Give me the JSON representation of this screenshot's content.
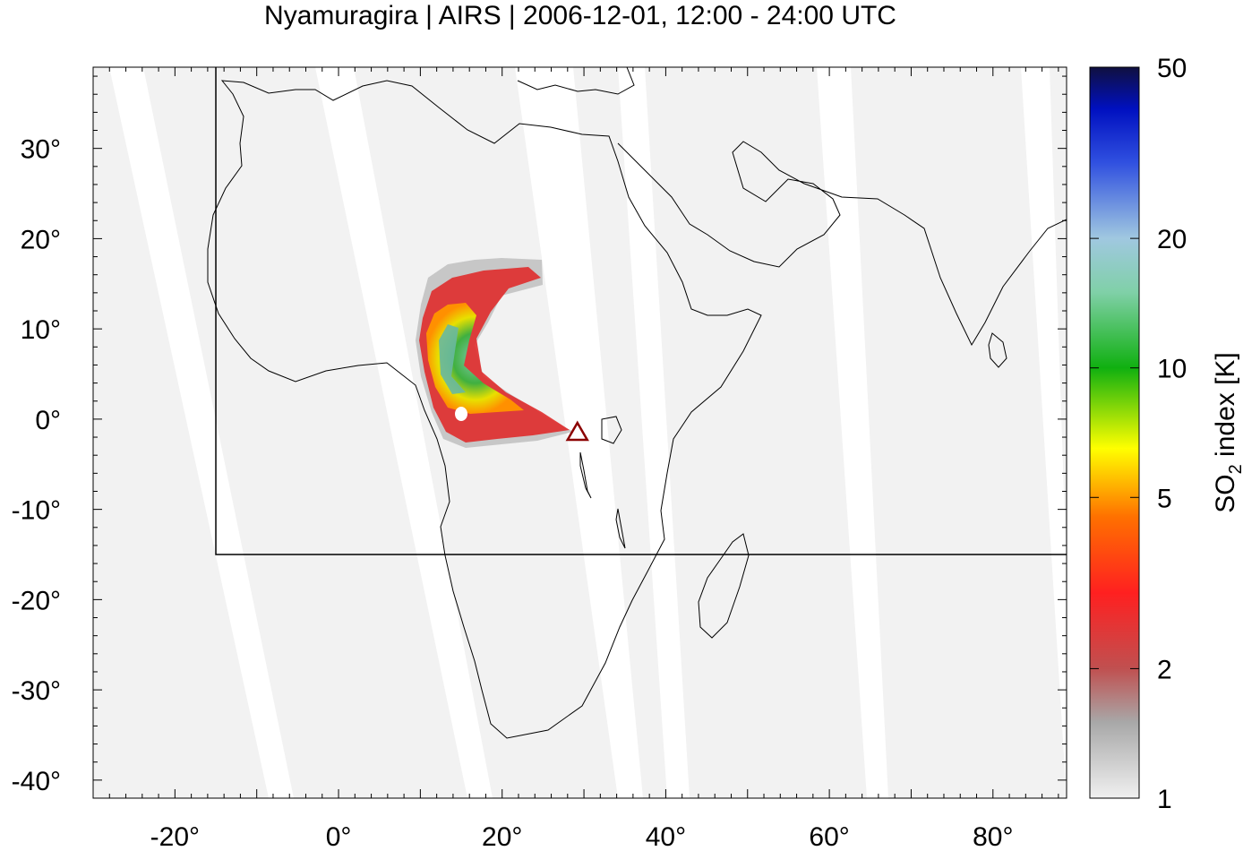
{
  "title": "Nyamuragira | AIRS | 2006-12-01, 12:00 - 24:00 UTC",
  "map": {
    "lon_range": [
      -30,
      89
    ],
    "lat_range": [
      -42,
      39
    ],
    "x_ticks": [
      {
        "value": -20,
        "label": "-20°"
      },
      {
        "value": 0,
        "label": "0°"
      },
      {
        "value": 20,
        "label": "20°"
      },
      {
        "value": 40,
        "label": "40°"
      },
      {
        "value": 60,
        "label": "60°"
      },
      {
        "value": 80,
        "label": "80°"
      }
    ],
    "y_ticks": [
      {
        "value": 30,
        "label": "30°"
      },
      {
        "value": 20,
        "label": "20°"
      },
      {
        "value": 10,
        "label": "10°"
      },
      {
        "value": 0,
        "label": "0°"
      },
      {
        "value": -10,
        "label": "-10°"
      },
      {
        "value": -20,
        "label": "-20°"
      },
      {
        "value": -30,
        "label": "-30°"
      },
      {
        "value": -40,
        "label": "-40°"
      }
    ],
    "region_box": {
      "lon_min": -15,
      "lon_max": 89,
      "lat_min": -15,
      "lat_max": 39
    },
    "volcano": {
      "name": "Nyamuragira",
      "lon": 29.2,
      "lat": -1.4,
      "color": "#8b0000"
    },
    "background_color": "#f2f2f2"
  },
  "colorbar": {
    "label_main": "SO",
    "label_sub": "2",
    "label_rest": " index [K]",
    "scale": "log",
    "range": [
      1,
      50
    ],
    "ticks": [
      {
        "value": 1,
        "label": "1"
      },
      {
        "value": 2,
        "label": "2"
      },
      {
        "value": 5,
        "label": "5"
      },
      {
        "value": 10,
        "label": "10"
      },
      {
        "value": 20,
        "label": "20"
      },
      {
        "value": 50,
        "label": "50"
      }
    ],
    "stops": [
      {
        "value": 1,
        "color": "#f0f0f0"
      },
      {
        "value": 1.5,
        "color": "#a8a8a8"
      },
      {
        "value": 2,
        "color": "#c05050"
      },
      {
        "value": 3,
        "color": "#ff2020"
      },
      {
        "value": 4.5,
        "color": "#ff7000"
      },
      {
        "value": 6.5,
        "color": "#ffff00"
      },
      {
        "value": 10,
        "color": "#10b010"
      },
      {
        "value": 15,
        "color": "#80d0a8"
      },
      {
        "value": 20,
        "color": "#a0c8e0"
      },
      {
        "value": 30,
        "color": "#3050e0"
      },
      {
        "value": 40,
        "color": "#0010c0"
      },
      {
        "value": 50,
        "color": "#101040"
      }
    ]
  }
}
